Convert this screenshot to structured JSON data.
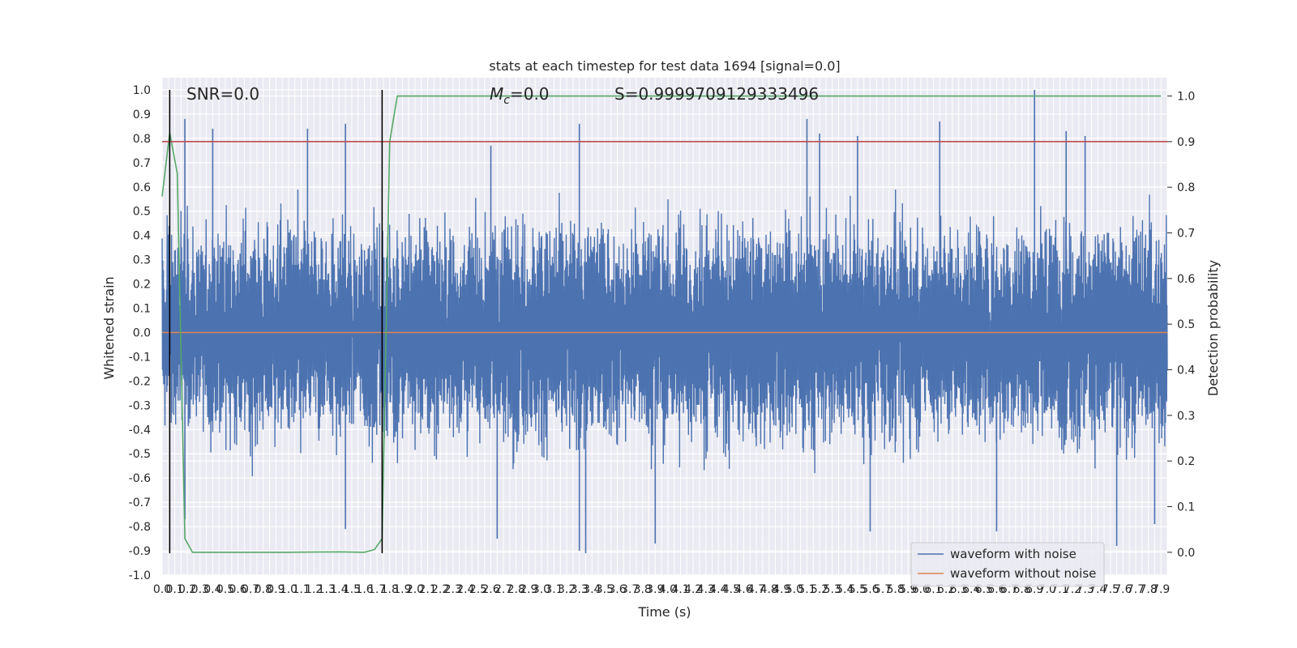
{
  "chart_data": {
    "type": "line",
    "title": "stats at each timestep for test data 1694 [signal=0.0]",
    "xlabel": "Time (s)",
    "ylabel": "Whitened strain",
    "y2label": "Detection probability",
    "xlim": [
      0.0,
      7.95
    ],
    "ylim": [
      -1.0,
      1.05
    ],
    "y2lim": [
      -0.05,
      1.04
    ],
    "grid": true,
    "legend_position": "bottom-right",
    "x_tick_step": 0.05,
    "x_ticks": [
      "0.0",
      "0.1",
      "0.2",
      "0.3",
      "0.4",
      "0.5",
      "0.6",
      "0.7",
      "0.8",
      "0.9",
      "1.0",
      "1.1",
      "1.2",
      "1.3",
      "1.4",
      "1.5",
      "1.6",
      "1.7",
      "1.8",
      "1.9",
      "2.0",
      "2.1",
      "2.2",
      "2.3",
      "2.4",
      "2.5",
      "2.6",
      "2.7",
      "2.8",
      "2.9",
      "3.0",
      "3.1",
      "3.2",
      "3.3",
      "3.4",
      "3.5",
      "3.6",
      "3.7",
      "3.8",
      "3.9",
      "4.0",
      "4.1",
      "4.2",
      "4.3",
      "4.4",
      "4.5",
      "4.6",
      "4.7",
      "4.8",
      "4.9",
      "5.0",
      "5.1",
      "5.2",
      "5.3",
      "5.4",
      "5.5",
      "5.6",
      "5.7",
      "5.8",
      "5.9",
      "6.0",
      "6.1",
      "6.2",
      "6.3",
      "6.4",
      "6.5",
      "6.6",
      "6.7",
      "6.8",
      "6.9",
      "7.0",
      "7.1",
      "7.2",
      "7.3",
      "7.4",
      "7.5",
      "7.6",
      "7.7",
      "7.8",
      "7.9"
    ],
    "y_ticks": [
      "-1.0",
      "-0.9",
      "-0.8",
      "-0.7",
      "-0.6",
      "-0.5",
      "-0.4",
      "-0.3",
      "-0.2",
      "-0.1",
      "0.0",
      "0.1",
      "0.2",
      "0.3",
      "0.4",
      "0.5",
      "0.6",
      "0.7",
      "0.8",
      "0.9",
      "1.0"
    ],
    "y2_ticks": [
      "0.0",
      "0.1",
      "0.2",
      "0.3",
      "0.4",
      "0.5",
      "0.6",
      "0.7",
      "0.8",
      "0.9",
      "1.0"
    ],
    "annotations": {
      "snr": "SNR=0.0",
      "mc_symbol": "M",
      "mc_sub": "c",
      "mc_value": "=0.0",
      "s": "S=0.9999709129333496"
    },
    "series": [
      {
        "name": "waveform with noise",
        "color": "#4c72b0",
        "axis": "left",
        "typical_amplitude": 0.36,
        "peak_max": 1.0,
        "peak_min": -0.91,
        "peaks": [
          {
            "x": 0.18,
            "y": 0.88
          },
          {
            "x": 0.4,
            "y": 0.84
          },
          {
            "x": 1.15,
            "y": 0.84
          },
          {
            "x": 1.45,
            "y": 0.86
          },
          {
            "x": 2.6,
            "y": 0.77
          },
          {
            "x": 3.3,
            "y": 0.86
          },
          {
            "x": 5.1,
            "y": 0.88
          },
          {
            "x": 5.2,
            "y": 0.82
          },
          {
            "x": 5.5,
            "y": 0.81
          },
          {
            "x": 6.15,
            "y": 0.87
          },
          {
            "x": 6.9,
            "y": 1.0
          },
          {
            "x": 7.15,
            "y": 0.83
          },
          {
            "x": 7.3,
            "y": 0.81
          },
          {
            "x": 0.18,
            "y": -0.77
          },
          {
            "x": 1.45,
            "y": -0.81
          },
          {
            "x": 2.65,
            "y": -0.85
          },
          {
            "x": 3.3,
            "y": -0.9
          },
          {
            "x": 3.35,
            "y": -0.91
          },
          {
            "x": 3.9,
            "y": -0.87
          },
          {
            "x": 5.6,
            "y": -0.82
          },
          {
            "x": 6.6,
            "y": -0.82
          },
          {
            "x": 7.55,
            "y": -0.88
          },
          {
            "x": 7.85,
            "y": -0.79
          }
        ]
      },
      {
        "name": "waveform without noise",
        "color": "#dd8452",
        "axis": "left",
        "x": [
          0.0,
          7.95
        ],
        "values": [
          0.0,
          0.0
        ]
      },
      {
        "color": "#55a868",
        "axis": "right",
        "x": [
          0.0,
          0.06,
          0.12,
          0.18,
          0.24,
          0.3,
          0.6,
          1.0,
          1.4,
          1.6,
          1.68,
          1.74,
          1.8,
          1.86,
          2.0,
          3.0,
          4.0,
          5.0,
          6.0,
          7.0,
          7.9
        ],
        "values": [
          0.78,
          0.92,
          0.83,
          0.03,
          0.0,
          0.0,
          0.0,
          0.0,
          0.001,
          0.0,
          0.006,
          0.03,
          0.9,
          1.0,
          1.0,
          1.0,
          1.0,
          1.0,
          1.0,
          1.0,
          1.0
        ]
      },
      {
        "color": "#c44e52",
        "axis": "right",
        "x": [
          0.0,
          7.95
        ],
        "values": [
          0.9,
          0.9
        ]
      },
      {
        "color": "#000000",
        "axis": "left",
        "x": [
          0.06,
          0.06
        ],
        "values": [
          -0.91,
          1.0
        ]
      },
      {
        "color": "#000000",
        "axis": "left",
        "x": [
          1.74,
          1.74
        ],
        "values": [
          -0.91,
          1.0
        ]
      }
    ]
  }
}
